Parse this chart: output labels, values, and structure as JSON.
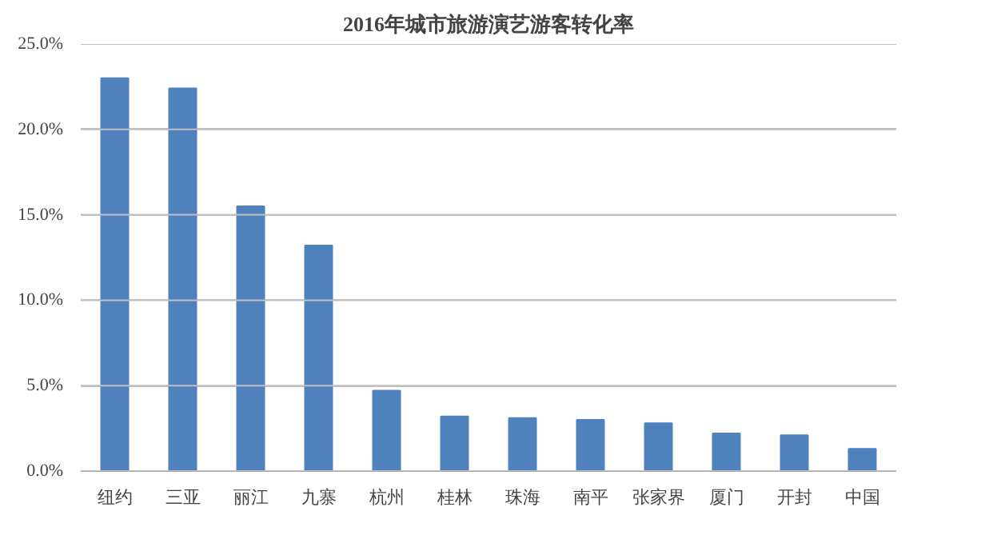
{
  "chart_data": {
    "type": "bar",
    "title": "2016年城市旅游演艺游客转化率",
    "categories": [
      "纽约",
      "三亚",
      "丽江",
      "九寨",
      "杭州",
      "桂林",
      "珠海",
      "南平",
      "张家界",
      "厦门",
      "开封",
      "中国"
    ],
    "values": [
      23.0,
      22.4,
      15.5,
      13.2,
      4.7,
      3.2,
      3.1,
      3.0,
      2.8,
      2.2,
      2.1,
      1.3
    ],
    "color": "#4f81bd",
    "ylim": [
      0,
      25
    ],
    "yticks": [
      {
        "value": 0,
        "label": "0.0%"
      },
      {
        "value": 5,
        "label": "5.0%"
      },
      {
        "value": 10,
        "label": "10.0%"
      },
      {
        "value": 15,
        "label": "15.0%"
      },
      {
        "value": 20,
        "label": "20.0%"
      },
      {
        "value": 25,
        "label": "25.0%"
      }
    ],
    "grid": "y"
  }
}
